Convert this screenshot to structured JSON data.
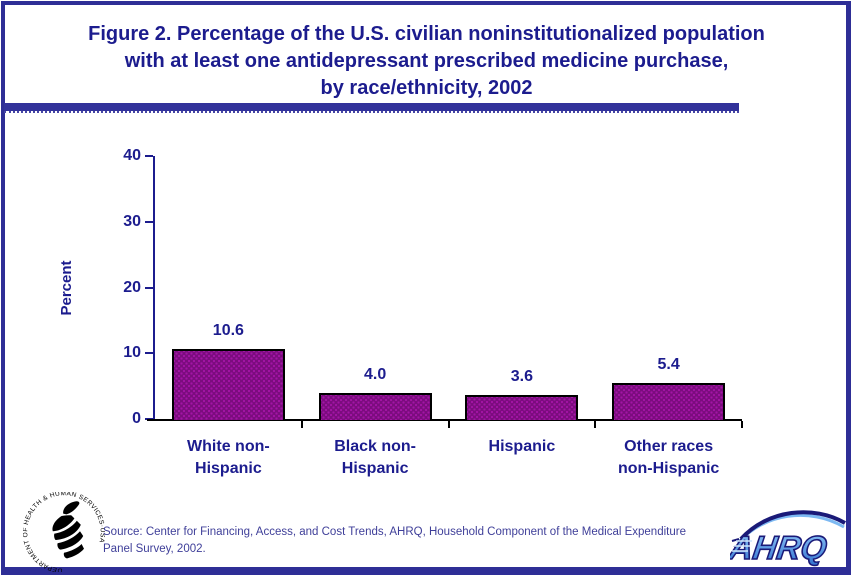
{
  "title": {
    "text": "Figure 2. Percentage of the U.S. civilian noninstitutionalized population\nwith at least one antidepressant prescribed medicine purchase,\nby race/ethnicity, 2002"
  },
  "chart_data": {
    "type": "bar",
    "title": "Percentage of the U.S. civilian noninstitutionalized population with at least one antidepressant prescribed medicine purchase, by race/ethnicity, 2002",
    "categories": [
      "White non-Hispanic",
      "Black non-Hispanic",
      "Hispanic",
      "Other races non-Hispanic"
    ],
    "category_display": [
      "White non-\nHispanic",
      "Black non-\nHispanic",
      "Hispanic",
      "Other races\nnon-Hispanic"
    ],
    "values": [
      10.6,
      4.0,
      3.6,
      5.4
    ],
    "value_labels": [
      "10.6",
      "4.0",
      "3.6",
      "5.4"
    ],
    "xlabel": "",
    "ylabel": "Percent",
    "yticks": [
      "0",
      "10",
      "20",
      "30",
      "40"
    ],
    "ytick_values": [
      0,
      10,
      20,
      30,
      40
    ],
    "ylim": [
      0,
      40
    ],
    "grid": false,
    "legend": "none",
    "bar_color": "#7b0c7e",
    "bar_dot_color": "#a315a5",
    "bar_border_color": "#000000",
    "y_axis_color": "#1c1c8e",
    "x_axis_color": "#000000",
    "label_color": "#1c1c8e"
  },
  "footer": {
    "source": "Source: Center for Financing, Access, and Cost Trends, AHRQ, Household Component of the Medical Expenditure Panel Survey, 2002.",
    "hhs_logo_ring_text": "DEPARTMENT OF HEALTH & HUMAN SERVICES · USA",
    "ahrq_logo_text": "AHRQ"
  },
  "colors": {
    "frame": "#2e2e96",
    "title_text": "#1c1c8e",
    "divider": "#32329a",
    "background": "#ffffff",
    "source_text": "#3f3f99",
    "ahrq_light_blue": "#5b9ae8",
    "ahrq_navy": "#1a1a78",
    "hhs_black": "#000000"
  }
}
